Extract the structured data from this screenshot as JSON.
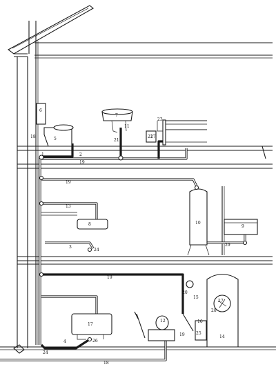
{
  "labels": {
    "n1": "1",
    "n2": "2",
    "n3": "3",
    "n4": "4",
    "n5": "5",
    "n6": "6",
    "n7": "7",
    "n8": "8",
    "n9": "9",
    "n10": "10",
    "n11": "11",
    "n12": "12",
    "n13": "13",
    "n14": "14",
    "n15": "15",
    "n16": "16",
    "n17": "17",
    "n18": "18",
    "n19": "19",
    "n20": "20",
    "n21": "21",
    "n22": "22",
    "n23": "23",
    "n24": "24",
    "n25": "25",
    "n26": "26",
    "n27": "27",
    "n28": "28",
    "n29": "29"
  },
  "colors": {
    "ink": "#1a1a1a",
    "paper": "#ffffff"
  }
}
